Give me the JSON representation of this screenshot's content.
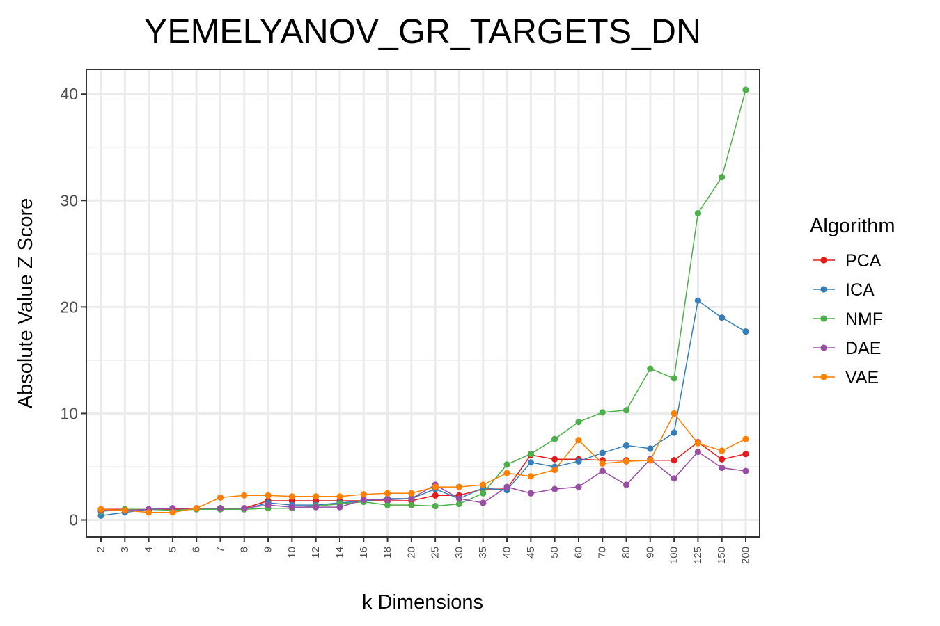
{
  "chart_data": {
    "type": "line",
    "title": "YEMELYANOV_GR_TARGETS_DN",
    "xlabel": "k Dimensions",
    "ylabel": "Absolute Value Z Score",
    "categories": [
      "2",
      "3",
      "4",
      "5",
      "6",
      "7",
      "8",
      "9",
      "10",
      "12",
      "14",
      "16",
      "18",
      "20",
      "25",
      "30",
      "35",
      "40",
      "45",
      "50",
      "60",
      "70",
      "80",
      "90",
      "100",
      "125",
      "150",
      "200"
    ],
    "yticks": [
      0,
      10,
      20,
      30,
      40
    ],
    "ylim": [
      -1.6,
      42.3
    ],
    "grid": true,
    "legend": {
      "title": "Algorithm",
      "position": "right"
    },
    "series": [
      {
        "name": "PCA",
        "color": "#e41a1c",
        "values": [
          1.0,
          1.0,
          1.0,
          1.0,
          1.1,
          1.1,
          1.1,
          1.8,
          1.8,
          1.8,
          1.8,
          1.8,
          1.8,
          1.8,
          2.3,
          2.3,
          2.9,
          2.9,
          6.1,
          5.7,
          5.7,
          5.6,
          5.6,
          5.6,
          5.6,
          7.3,
          5.7,
          6.2
        ]
      },
      {
        "name": "ICA",
        "color": "#377eb8",
        "values": [
          0.4,
          0.7,
          1.0,
          1.1,
          1.1,
          1.1,
          1.0,
          1.6,
          1.4,
          1.4,
          1.6,
          1.8,
          2.0,
          2.0,
          2.9,
          2.0,
          3.0,
          2.8,
          5.4,
          5.0,
          5.5,
          6.3,
          7.0,
          6.7,
          8.2,
          20.6,
          19.0,
          17.7
        ]
      },
      {
        "name": "NMF",
        "color": "#4daf4a",
        "values": [
          0.8,
          1.0,
          1.0,
          0.9,
          1.0,
          1.0,
          1.0,
          1.1,
          1.1,
          1.3,
          1.5,
          1.7,
          1.4,
          1.4,
          1.3,
          1.5,
          2.5,
          5.2,
          6.2,
          7.6,
          9.2,
          10.1,
          10.3,
          14.2,
          13.3,
          28.8,
          32.2,
          40.4
        ]
      },
      {
        "name": "DAE",
        "color": "#984ea3",
        "values": [
          0.9,
          0.9,
          1.0,
          1.1,
          1.1,
          1.1,
          1.1,
          1.4,
          1.2,
          1.2,
          1.2,
          1.9,
          1.9,
          2.0,
          3.3,
          2.0,
          1.6,
          3.1,
          2.5,
          2.9,
          3.1,
          4.6,
          3.3,
          5.7,
          3.9,
          6.4,
          4.9,
          4.6
        ]
      },
      {
        "name": "VAE",
        "color": "#ff7f00",
        "values": [
          1.0,
          0.9,
          0.7,
          0.7,
          1.1,
          2.1,
          2.3,
          2.3,
          2.2,
          2.2,
          2.2,
          2.4,
          2.5,
          2.5,
          3.1,
          3.1,
          3.3,
          4.4,
          4.1,
          4.7,
          7.5,
          5.3,
          5.5,
          5.6,
          10.0,
          7.2,
          6.5,
          7.6
        ]
      }
    ]
  }
}
